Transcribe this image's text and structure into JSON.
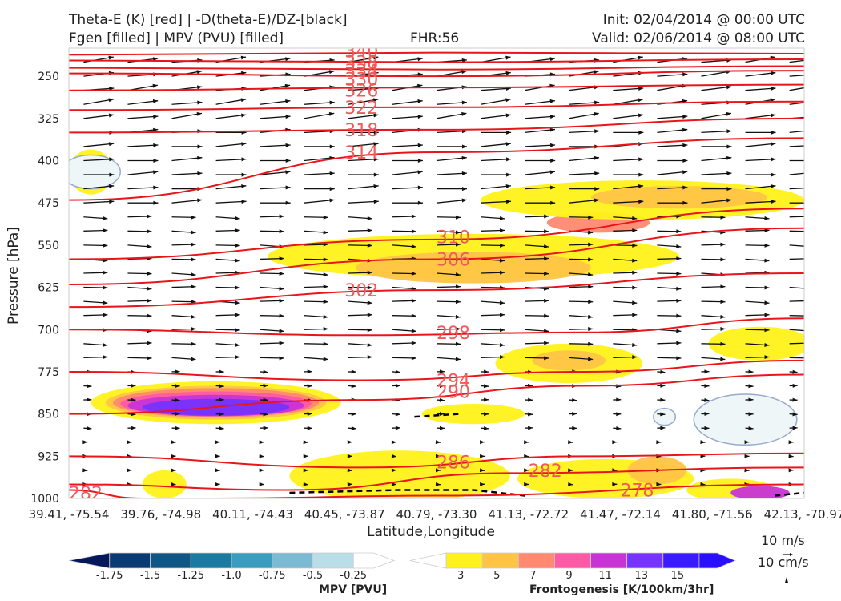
{
  "header": {
    "title_line1": "Theta-E (K) [red] | -D(theta-E)/DZ-[black]",
    "title_line2": "Fgen [filled] | MPV (PVU) [filled]",
    "fhr": "FHR:56",
    "init": "Init: 02/04/2014 @ 00:00 UTC",
    "valid": "Valid: 02/06/2014 @ 08:00 UTC"
  },
  "chart_data": {
    "type": "cross-section",
    "xlabel": "Latitude,Longitude",
    "ylabel": "Pressure [hPa]",
    "ylim": [
      1000,
      200
    ],
    "y_ticks": [
      250,
      325,
      400,
      475,
      550,
      625,
      700,
      775,
      850,
      925,
      1000
    ],
    "x_ticks": [
      "39.41, -75.54",
      "39.76, -74.98",
      "40.11, -74.43",
      "40.45, -73.87",
      "40.79, -73.30",
      "41.13, -72.72",
      "41.47, -72.14",
      "41.80, -71.56",
      "42.13, -70.97"
    ],
    "theta_e_contours": [
      {
        "label": "278",
        "at": [
          "41.47, -72.14",
          985
        ],
        "trend": [
          [
            0.2,
            1000
          ],
          [
            0.5,
            995
          ],
          [
            1.0,
            975
          ]
        ]
      },
      {
        "label": "282",
        "at": [
          "41.13, -72.72",
          950
        ],
        "trend": [
          [
            0.0,
            975
          ],
          [
            0.3,
            985
          ],
          [
            0.6,
            955
          ],
          [
            1.0,
            945
          ]
        ]
      },
      {
        "label": "282",
        "at": [
          "39.41, -75.54",
          990
        ],
        "trend": [
          [
            0.0,
            985
          ],
          [
            0.1,
            1000
          ]
        ]
      },
      {
        "label": "286",
        "at": [
          "40.79, -73.30",
          935
        ],
        "trend": [
          [
            0.0,
            925
          ],
          [
            0.4,
            945
          ],
          [
            0.7,
            925
          ],
          [
            1.0,
            920
          ]
        ]
      },
      {
        "label": "290",
        "at": [
          "40.79, -73.30",
          810
        ],
        "trend": [
          [
            0.0,
            850
          ],
          [
            0.4,
            825
          ],
          [
            0.7,
            800
          ],
          [
            1.0,
            780
          ]
        ]
      },
      {
        "label": "294",
        "at": [
          "40.79, -73.30",
          790
        ],
        "trend": [
          [
            0.0,
            775
          ],
          [
            0.4,
            790
          ],
          [
            0.7,
            775
          ],
          [
            1.0,
            755
          ]
        ]
      },
      {
        "label": "298",
        "at": [
          "40.79, -73.30",
          705
        ],
        "trend": [
          [
            0.0,
            700
          ],
          [
            0.4,
            710
          ],
          [
            0.7,
            705
          ],
          [
            1.0,
            680
          ]
        ]
      },
      {
        "label": "302",
        "at": [
          "40.45, -73.87",
          630
        ],
        "trend": [
          [
            0.0,
            660
          ],
          [
            0.5,
            630
          ],
          [
            1.0,
            600
          ]
        ]
      },
      {
        "label": "306",
        "at": [
          "40.79, -73.30",
          575
        ],
        "trend": [
          [
            0.0,
            620
          ],
          [
            0.5,
            575
          ],
          [
            1.0,
            520
          ]
        ]
      },
      {
        "label": "310",
        "at": [
          "40.79, -73.30",
          535
        ],
        "trend": [
          [
            0.0,
            575
          ],
          [
            0.5,
            540
          ],
          [
            1.0,
            485
          ]
        ]
      },
      {
        "label": "314",
        "at": [
          "40.45, -73.87",
          385
        ],
        "trend": [
          [
            0.0,
            470
          ],
          [
            0.5,
            385
          ],
          [
            1.0,
            360
          ]
        ]
      },
      {
        "label": "318",
        "at": [
          "40.45, -73.87",
          345
        ],
        "trend": [
          [
            0.0,
            350
          ],
          [
            0.5,
            345
          ],
          [
            1.0,
            325
          ]
        ]
      },
      {
        "label": "322",
        "at": [
          "40.45, -73.87",
          305
        ],
        "trend": [
          [
            0.0,
            310
          ],
          [
            0.5,
            305
          ],
          [
            1.0,
            295
          ]
        ]
      },
      {
        "label": "326",
        "at": [
          "40.45, -73.87",
          275
        ],
        "trend": [
          [
            0.0,
            275
          ],
          [
            0.5,
            270
          ],
          [
            1.0,
            265
          ]
        ]
      },
      {
        "label": "330",
        "at": [
          "40.45, -73.87",
          255
        ],
        "trend": [
          [
            0.0,
            245
          ],
          [
            0.5,
            250
          ],
          [
            1.0,
            240
          ]
        ]
      },
      {
        "label": "334",
        "at": [
          "40.45, -73.87",
          240
        ],
        "trend": [
          [
            0.0,
            235
          ],
          [
            0.5,
            238
          ],
          [
            1.0,
            232
          ]
        ]
      },
      {
        "label": "338",
        "at": [
          "40.45, -73.87",
          225
        ],
        "trend": [
          [
            0.0,
            222
          ],
          [
            0.5,
            225
          ],
          [
            1.0,
            220
          ]
        ]
      },
      {
        "label": "340",
        "at": [
          "40.45, -73.87",
          205
        ],
        "trend": [
          [
            0.0,
            212
          ],
          [
            0.5,
            208
          ],
          [
            1.0,
            210
          ]
        ]
      }
    ],
    "frontogenesis_regions": [
      {
        "level": 3,
        "center": [
          0.55,
          570
        ],
        "radius": [
          0.28,
          40
        ]
      },
      {
        "level": 5,
        "center": [
          0.55,
          590
        ],
        "radius": [
          0.16,
          28
        ]
      },
      {
        "level": 7,
        "center": [
          0.72,
          510
        ],
        "radius": [
          0.07,
          18
        ]
      },
      {
        "level": 3,
        "center": [
          0.78,
          470
        ],
        "radius": [
          0.22,
          35
        ]
      },
      {
        "level": 5,
        "center": [
          0.83,
          465
        ],
        "radius": [
          0.12,
          20
        ]
      },
      {
        "level": 3,
        "center": [
          0.68,
          760
        ],
        "radius": [
          0.1,
          35
        ]
      },
      {
        "level": 5,
        "center": [
          0.68,
          755
        ],
        "radius": [
          0.05,
          18
        ]
      },
      {
        "level": 3,
        "center": [
          0.94,
          725
        ],
        "radius": [
          0.07,
          30
        ]
      },
      {
        "level": 3,
        "center": [
          0.55,
          850
        ],
        "radius": [
          0.07,
          18
        ]
      },
      {
        "level": 3,
        "center": [
          0.45,
          960
        ],
        "radius": [
          0.15,
          45
        ]
      },
      {
        "level": 3,
        "center": [
          0.73,
          965
        ],
        "radius": [
          0.12,
          35
        ]
      },
      {
        "level": 5,
        "center": [
          0.8,
          950
        ],
        "radius": [
          0.04,
          25
        ]
      },
      {
        "level": 3,
        "center": [
          0.9,
          985
        ],
        "radius": [
          0.06,
          20
        ]
      },
      {
        "level": 11,
        "center": [
          0.94,
          990
        ],
        "radius": [
          0.04,
          12
        ]
      },
      {
        "level": 3,
        "center": [
          0.13,
          975
        ],
        "radius": [
          0.03,
          25
        ]
      },
      {
        "level": 3,
        "center": [
          0.03,
          420
        ],
        "radius": [
          0.03,
          40
        ]
      },
      {
        "level": 3,
        "center": [
          0.2,
          830
        ],
        "radius": [
          0.17,
          38
        ]
      },
      {
        "level": 5,
        "center": [
          0.2,
          830
        ],
        "radius": [
          0.15,
          30
        ]
      },
      {
        "level": 7,
        "center": [
          0.2,
          830
        ],
        "radius": [
          0.14,
          26
        ]
      },
      {
        "level": 9,
        "center": [
          0.2,
          832
        ],
        "radius": [
          0.13,
          22
        ]
      },
      {
        "level": 11,
        "center": [
          0.2,
          835
        ],
        "radius": [
          0.12,
          19
        ]
      },
      {
        "level": 13,
        "center": [
          0.2,
          838
        ],
        "radius": [
          0.1,
          15
        ]
      }
    ],
    "mpv_regions": [
      {
        "level": -0.25,
        "center": [
          0.03,
          420
        ],
        "radius": [
          0.04,
          30
        ]
      },
      {
        "level": -0.25,
        "center": [
          0.92,
          860
        ],
        "radius": [
          0.07,
          45
        ]
      },
      {
        "level": -0.25,
        "center": [
          0.81,
          855
        ],
        "radius": [
          0.015,
          15
        ]
      }
    ],
    "stability_zero_contour": {
      "style": "dashed-black",
      "segments": [
        [
          [
            0.3,
            990
          ],
          [
            0.45,
            985
          ],
          [
            0.55,
            985
          ],
          [
            0.62,
            995
          ]
        ],
        [
          [
            0.47,
            855
          ],
          [
            0.53,
            850
          ]
        ],
        [
          [
            0.96,
            995
          ],
          [
            1.0,
            990
          ]
        ]
      ]
    },
    "wind_reference": [
      "10 m/s",
      "10 cm/s"
    ],
    "colorbars": [
      {
        "title": "MPV [PVU]",
        "labels": [
          "-1.75",
          "-1.5",
          "-1.25",
          "-1.0",
          "-0.75",
          "-0.5",
          "-0.25"
        ],
        "colors": [
          "#05185b",
          "#0a3a72",
          "#0f5685",
          "#1a7aa0",
          "#3a9cbf",
          "#7bbad2",
          "#b9dde9",
          "#ffffff"
        ]
      },
      {
        "title": "Frontogenesis [K/100km/3hr]",
        "labels": [
          "3",
          "5",
          "7",
          "9",
          "11",
          "13",
          "15"
        ],
        "colors": [
          "#ffffff",
          "#fff21a",
          "#ffc444",
          "#ff8a70",
          "#ff5aa6",
          "#c833d6",
          "#7733ff",
          "#3a1aff",
          "#2b10ff"
        ]
      }
    ]
  }
}
